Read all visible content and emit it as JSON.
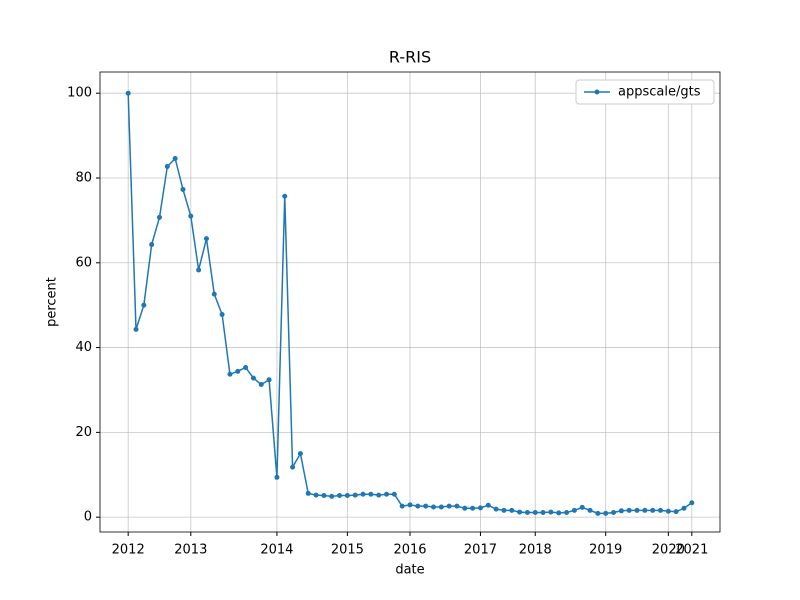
{
  "chart_data": {
    "type": "line",
    "title": "R-RIS",
    "x_label": "date",
    "y_label": "percent",
    "categories": [
      "2012",
      null,
      null,
      null,
      null,
      null,
      null,
      null,
      "2013",
      null,
      null,
      null,
      null,
      null,
      null,
      null,
      null,
      null,
      null,
      "2014",
      null,
      null,
      null,
      null,
      null,
      null,
      null,
      null,
      "2015",
      null,
      null,
      null,
      null,
      null,
      null,
      null,
      "2016",
      null,
      null,
      null,
      null,
      null,
      null,
      null,
      null,
      "2017",
      null,
      null,
      null,
      null,
      null,
      null,
      "2018",
      null,
      null,
      null,
      null,
      null,
      null,
      null,
      null,
      "2019",
      null,
      null,
      null,
      null,
      null,
      null,
      null,
      "2020",
      null,
      null,
      "2021"
    ],
    "series": [
      {
        "name": "appscale/gts",
        "color": "#1f77b4",
        "values": [
          100,
          44.3,
          50,
          64.3,
          70.7,
          82.7,
          84.6,
          77.3,
          71,
          58.3,
          65.7,
          52.6,
          47.8,
          33.7,
          34.4,
          35.3,
          32.8,
          31.3,
          32.4,
          9.4,
          75.7,
          11.8,
          15,
          5.6,
          5.2,
          5.1,
          4.9,
          5.1,
          5.1,
          5.2,
          5.4,
          5.4,
          5.2,
          5.4,
          5.4,
          2.6,
          2.9,
          2.6,
          2.6,
          2.4,
          2.4,
          2.6,
          2.6,
          2.1,
          2.1,
          2.2,
          2.8,
          1.9,
          1.6,
          1.6,
          1.2,
          1.1,
          1.1,
          1.1,
          1.2,
          1.0,
          1.1,
          1.6,
          2.3,
          1.6,
          0.9,
          0.9,
          1.1,
          1.5,
          1.6,
          1.6,
          1.6,
          1.6,
          1.6,
          1.4,
          1.3,
          2.1,
          3.4
        ]
      }
    ],
    "ylim": [
      -3.5,
      105
    ],
    "yticks": [
      0,
      20,
      40,
      60,
      80,
      100
    ],
    "grid": true,
    "legend": "upper right"
  }
}
